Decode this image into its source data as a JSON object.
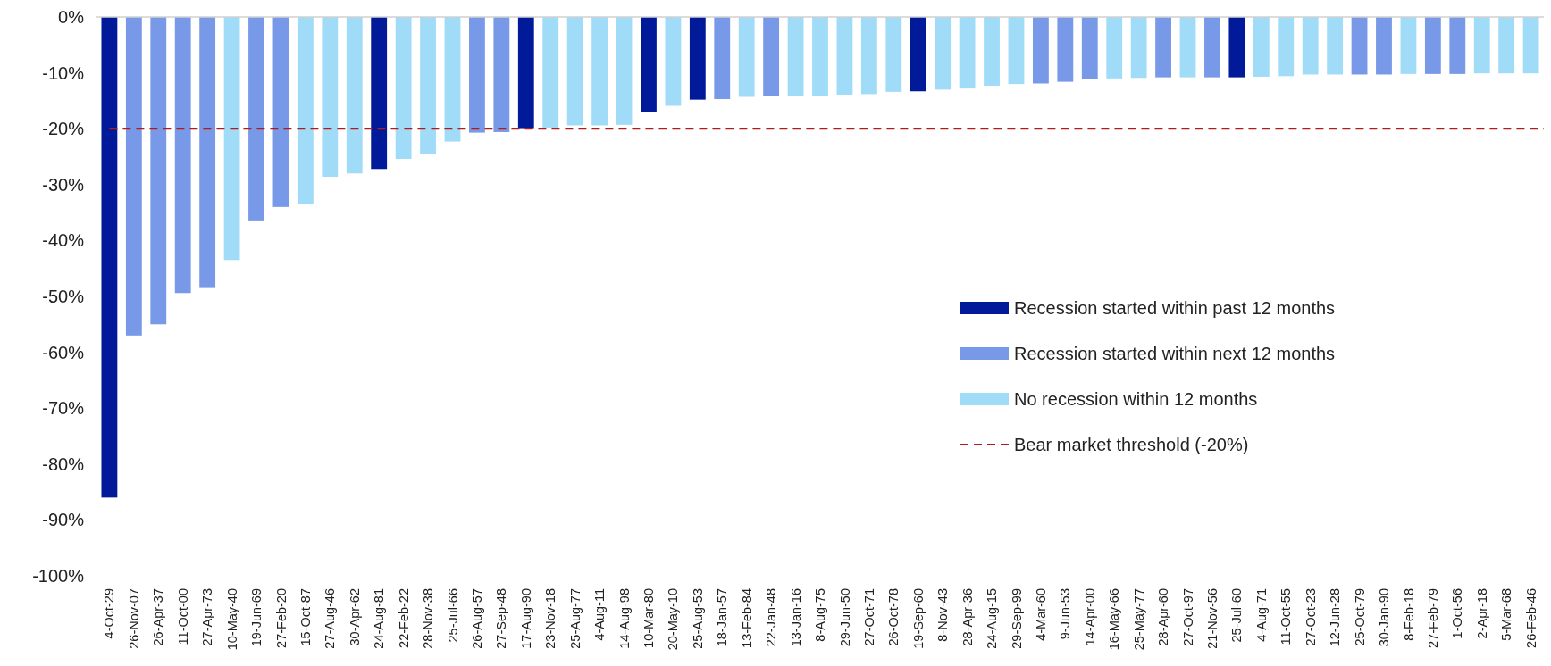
{
  "chart_data": {
    "type": "bar",
    "categories": [
      "4-Oct-29",
      "26-Nov-07",
      "26-Apr-37",
      "11-Oct-00",
      "27-Apr-73",
      "10-May-40",
      "19-Jun-69",
      "27-Feb-20",
      "15-Oct-87",
      "27-Aug-46",
      "30-Apr-62",
      "24-Aug-81",
      "22-Feb-22",
      "28-Nov-38",
      "25-Jul-66",
      "26-Aug-57",
      "27-Sep-48",
      "17-Aug-90",
      "23-Nov-18",
      "25-Aug-77",
      "4-Aug-11",
      "14-Aug-98",
      "10-Mar-80",
      "20-May-10",
      "25-Aug-53",
      "18-Jan-57",
      "13-Feb-84",
      "22-Jan-48",
      "13-Jan-16",
      "8-Aug-75",
      "29-Jun-50",
      "27-Oct-71",
      "26-Oct-78",
      "19-Sep-60",
      "8-Nov-43",
      "28-Apr-36",
      "24-Aug-15",
      "29-Sep-99",
      "4-Mar-60",
      "9-Jun-53",
      "14-Apr-00",
      "16-May-66",
      "25-May-77",
      "28-Apr-60",
      "27-Oct-97",
      "21-Nov-56",
      "25-Jul-60",
      "4-Aug-71",
      "11-Oct-55",
      "27-Oct-23",
      "12-Jun-28",
      "25-Oct-79",
      "30-Jan-90",
      "8-Feb-18",
      "27-Feb-79",
      "1-Oct-56",
      "2-Apr-18",
      "5-Mar-68",
      "26-Feb-46"
    ],
    "series": [
      {
        "name": "Recession started within past 12 months",
        "color": "#001a9a",
        "values": [
          -86,
          null,
          null,
          null,
          null,
          null,
          null,
          null,
          null,
          null,
          null,
          -27.2,
          null,
          null,
          null,
          null,
          null,
          -19.9,
          null,
          null,
          null,
          null,
          -17,
          null,
          -14.8,
          null,
          null,
          null,
          null,
          null,
          null,
          null,
          null,
          -13.3,
          null,
          null,
          null,
          null,
          null,
          null,
          null,
          null,
          null,
          null,
          null,
          null,
          -10.8,
          null,
          null,
          null,
          null,
          null,
          null,
          null,
          null,
          null,
          null,
          null,
          null
        ]
      },
      {
        "name": "Recession started within next 12 months",
        "color": "#7799e8",
        "values": [
          null,
          -57,
          -55,
          -49.4,
          -48.5,
          null,
          -36.4,
          -34,
          null,
          null,
          null,
          null,
          null,
          null,
          null,
          -20.7,
          -20.6,
          null,
          null,
          null,
          null,
          null,
          null,
          null,
          null,
          -14.7,
          null,
          -14.2,
          null,
          null,
          null,
          null,
          null,
          null,
          null,
          null,
          null,
          null,
          -11.9,
          -11.6,
          -11.1,
          null,
          null,
          -10.8,
          null,
          -10.8,
          null,
          null,
          null,
          null,
          null,
          -10.3,
          -10.3,
          null,
          -10.2,
          -10.2,
          null,
          null,
          null
        ]
      },
      {
        "name": "No recession within 12 months",
        "color": "#a0dcf8",
        "values": [
          null,
          null,
          null,
          null,
          null,
          -43.5,
          null,
          null,
          -33.4,
          -28.6,
          -28,
          null,
          -25.4,
          -24.5,
          -22.3,
          null,
          null,
          null,
          -19.8,
          -19.4,
          -19.4,
          -19.3,
          null,
          -15.9,
          null,
          null,
          -14.3,
          null,
          -14.1,
          -14.1,
          -13.9,
          -13.8,
          -13.4,
          null,
          -13,
          -12.8,
          -12.3,
          -12,
          null,
          null,
          null,
          -11,
          -10.9,
          null,
          -10.8,
          null,
          null,
          -10.7,
          -10.6,
          -10.3,
          -10.3,
          null,
          null,
          -10.2,
          null,
          null,
          -10.1,
          -10.1,
          -10.1
        ]
      }
    ],
    "ylim": [
      -100,
      0
    ],
    "yticks": [
      {
        "value": 0,
        "label": "0%"
      },
      {
        "value": -10,
        "label": "-10%"
      },
      {
        "value": -20,
        "label": "-20%"
      },
      {
        "value": -30,
        "label": "-30%"
      },
      {
        "value": -40,
        "label": "-40%"
      },
      {
        "value": -50,
        "label": "-50%"
      },
      {
        "value": -60,
        "label": "-60%"
      },
      {
        "value": -70,
        "label": "-70%"
      },
      {
        "value": -80,
        "label": "-80%"
      },
      {
        "value": -90,
        "label": "-90%"
      },
      {
        "value": -100,
        "label": "-100%"
      }
    ],
    "ref_lines": [
      {
        "axis": "y",
        "value": -20,
        "label": "Bear market threshold (-20%)",
        "color": "#b01c1c",
        "line_style": "dashed"
      }
    ],
    "legend": "right",
    "grid": false
  }
}
